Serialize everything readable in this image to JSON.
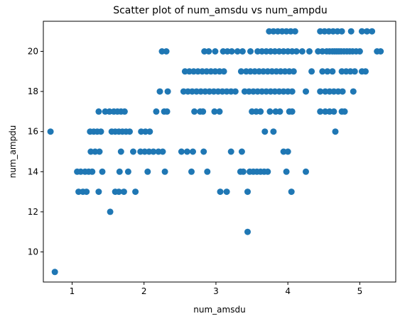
{
  "chart_data": {
    "type": "scatter",
    "title": "Scatter plot of num_amsdu vs num_ampdu",
    "xlabel": "num_amsdu",
    "ylabel": "num_ampdu",
    "xlim": [
      0.6,
      5.5
    ],
    "ylim": [
      8.5,
      21.5
    ],
    "xticks": [
      "1",
      "2",
      "3",
      "4",
      "5"
    ],
    "yticks": [
      "10",
      "12",
      "14",
      "16",
      "18",
      "20"
    ],
    "grid": false,
    "color": "#1f77b4",
    "points": [
      [
        0.7,
        16
      ],
      [
        0.76,
        9
      ],
      [
        1.07,
        14
      ],
      [
        1.12,
        14
      ],
      [
        1.18,
        14
      ],
      [
        1.23,
        14
      ],
      [
        1.28,
        14
      ],
      [
        1.09,
        13
      ],
      [
        1.15,
        13
      ],
      [
        1.2,
        13
      ],
      [
        1.25,
        16
      ],
      [
        1.3,
        16
      ],
      [
        1.35,
        16
      ],
      [
        1.4,
        16
      ],
      [
        1.26,
        15
      ],
      [
        1.32,
        15
      ],
      [
        1.38,
        15
      ],
      [
        1.37,
        17
      ],
      [
        1.46,
        17
      ],
      [
        1.52,
        17
      ],
      [
        1.58,
        17
      ],
      [
        1.63,
        17
      ],
      [
        1.68,
        17
      ],
      [
        1.73,
        17
      ],
      [
        1.42,
        14
      ],
      [
        1.37,
        13
      ],
      [
        1.53,
        12
      ],
      [
        1.55,
        16
      ],
      [
        1.6,
        16
      ],
      [
        1.65,
        16
      ],
      [
        1.7,
        16
      ],
      [
        1.75,
        16
      ],
      [
        1.8,
        16
      ],
      [
        1.6,
        13
      ],
      [
        1.65,
        13
      ],
      [
        1.72,
        13
      ],
      [
        1.88,
        13
      ],
      [
        1.66,
        14
      ],
      [
        1.78,
        14
      ],
      [
        1.68,
        15
      ],
      [
        1.85,
        15
      ],
      [
        1.96,
        16
      ],
      [
        2.02,
        16
      ],
      [
        2.08,
        16
      ],
      [
        1.95,
        15
      ],
      [
        2.01,
        15
      ],
      [
        2.07,
        15
      ],
      [
        2.13,
        15
      ],
      [
        2.2,
        15
      ],
      [
        2.26,
        15
      ],
      [
        2.05,
        14
      ],
      [
        2.17,
        17
      ],
      [
        2.28,
        17
      ],
      [
        2.32,
        17
      ],
      [
        2.22,
        18
      ],
      [
        2.33,
        18
      ],
      [
        2.25,
        20
      ],
      [
        2.31,
        20
      ],
      [
        2.29,
        14
      ],
      [
        2.52,
        15
      ],
      [
        2.6,
        15
      ],
      [
        2.68,
        15
      ],
      [
        2.83,
        15
      ],
      [
        2.66,
        14
      ],
      [
        2.88,
        14
      ],
      [
        2.57,
        19
      ],
      [
        2.63,
        19
      ],
      [
        2.69,
        19
      ],
      [
        2.75,
        19
      ],
      [
        2.81,
        19
      ],
      [
        2.87,
        19
      ],
      [
        2.93,
        19
      ],
      [
        2.99,
        19
      ],
      [
        3.05,
        19
      ],
      [
        3.11,
        19
      ],
      [
        2.55,
        18
      ],
      [
        2.61,
        18
      ],
      [
        2.67,
        18
      ],
      [
        2.73,
        18
      ],
      [
        2.79,
        18
      ],
      [
        2.85,
        18
      ],
      [
        2.91,
        18
      ],
      [
        2.97,
        18
      ],
      [
        3.03,
        18
      ],
      [
        3.09,
        18
      ],
      [
        3.15,
        18
      ],
      [
        3.21,
        18
      ],
      [
        3.27,
        18
      ],
      [
        2.7,
        17
      ],
      [
        2.78,
        17
      ],
      [
        2.82,
        17
      ],
      [
        2.98,
        17
      ],
      [
        3.05,
        17
      ],
      [
        2.84,
        20
      ],
      [
        2.9,
        20
      ],
      [
        2.99,
        20
      ],
      [
        3.1,
        20
      ],
      [
        3.16,
        20
      ],
      [
        3.22,
        20
      ],
      [
        3.3,
        20
      ],
      [
        3.37,
        20
      ],
      [
        3.48,
        20
      ],
      [
        3.06,
        13
      ],
      [
        3.15,
        13
      ],
      [
        3.21,
        15
      ],
      [
        3.36,
        15
      ],
      [
        3.34,
        14
      ],
      [
        3.38,
        14
      ],
      [
        3.47,
        14
      ],
      [
        3.52,
        14
      ],
      [
        3.57,
        14
      ],
      [
        3.62,
        14
      ],
      [
        3.67,
        14
      ],
      [
        3.72,
        14
      ],
      [
        3.98,
        14
      ],
      [
        4.25,
        14
      ],
      [
        3.44,
        13
      ],
      [
        4.05,
        13
      ],
      [
        3.44,
        11
      ],
      [
        3.4,
        18
      ],
      [
        3.46,
        18
      ],
      [
        3.52,
        18
      ],
      [
        3.58,
        18
      ],
      [
        3.64,
        18
      ],
      [
        3.7,
        18
      ],
      [
        3.76,
        18
      ],
      [
        3.82,
        18
      ],
      [
        3.88,
        18
      ],
      [
        3.94,
        18
      ],
      [
        4.0,
        18
      ],
      [
        4.06,
        18
      ],
      [
        3.35,
        19
      ],
      [
        3.42,
        19
      ],
      [
        3.48,
        19
      ],
      [
        3.54,
        19
      ],
      [
        3.6,
        19
      ],
      [
        3.66,
        19
      ],
      [
        3.72,
        19
      ],
      [
        3.78,
        19
      ],
      [
        3.84,
        19
      ],
      [
        3.9,
        19
      ],
      [
        3.96,
        19
      ],
      [
        4.02,
        19
      ],
      [
        4.08,
        19
      ],
      [
        3.5,
        17
      ],
      [
        3.56,
        17
      ],
      [
        3.62,
        17
      ],
      [
        3.75,
        17
      ],
      [
        3.83,
        17
      ],
      [
        3.89,
        17
      ],
      [
        4.02,
        17
      ],
      [
        4.06,
        17
      ],
      [
        3.68,
        16
      ],
      [
        3.8,
        16
      ],
      [
        3.94,
        15
      ],
      [
        4.0,
        15
      ],
      [
        3.58,
        20
      ],
      [
        3.64,
        20
      ],
      [
        3.7,
        20
      ],
      [
        3.76,
        20
      ],
      [
        3.82,
        20
      ],
      [
        3.88,
        20
      ],
      [
        3.94,
        20
      ],
      [
        4.0,
        20
      ],
      [
        4.06,
        20
      ],
      [
        4.12,
        20
      ],
      [
        4.2,
        20
      ],
      [
        4.3,
        20
      ],
      [
        3.74,
        21
      ],
      [
        3.8,
        21
      ],
      [
        3.86,
        21
      ],
      [
        3.92,
        21
      ],
      [
        3.98,
        21
      ],
      [
        4.04,
        21
      ],
      [
        4.1,
        21
      ],
      [
        4.25,
        18
      ],
      [
        4.33,
        19
      ],
      [
        4.45,
        21
      ],
      [
        4.51,
        21
      ],
      [
        4.57,
        21
      ],
      [
        4.63,
        21
      ],
      [
        4.69,
        21
      ],
      [
        4.75,
        21
      ],
      [
        4.88,
        21
      ],
      [
        5.03,
        21
      ],
      [
        5.1,
        21
      ],
      [
        5.17,
        21
      ],
      [
        4.42,
        20
      ],
      [
        4.48,
        20
      ],
      [
        4.54,
        20
      ],
      [
        4.58,
        20
      ],
      [
        4.62,
        20
      ],
      [
        4.65,
        20
      ],
      [
        4.68,
        20
      ],
      [
        4.71,
        20
      ],
      [
        4.74,
        20
      ],
      [
        4.78,
        20
      ],
      [
        4.82,
        20
      ],
      [
        4.86,
        20
      ],
      [
        4.9,
        20
      ],
      [
        4.95,
        20
      ],
      [
        5.0,
        20
      ],
      [
        5.24,
        20
      ],
      [
        5.29,
        20
      ],
      [
        4.45,
        18
      ],
      [
        4.52,
        18
      ],
      [
        4.58,
        18
      ],
      [
        4.64,
        18
      ],
      [
        4.7,
        18
      ],
      [
        4.76,
        18
      ],
      [
        4.91,
        18
      ],
      [
        4.48,
        19
      ],
      [
        4.55,
        19
      ],
      [
        4.62,
        19
      ],
      [
        4.75,
        19
      ],
      [
        4.81,
        19
      ],
      [
        4.87,
        19
      ],
      [
        4.93,
        19
      ],
      [
        5.03,
        19
      ],
      [
        5.08,
        19
      ],
      [
        4.45,
        17
      ],
      [
        4.52,
        17
      ],
      [
        4.58,
        17
      ],
      [
        4.64,
        17
      ],
      [
        4.75,
        17
      ],
      [
        4.79,
        17
      ],
      [
        4.66,
        16
      ]
    ]
  }
}
